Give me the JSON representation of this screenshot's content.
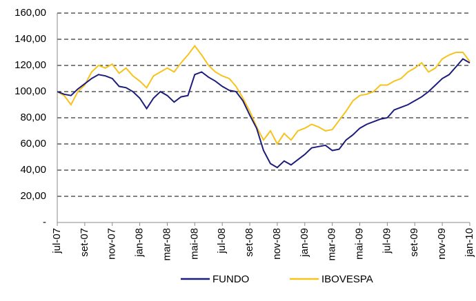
{
  "chart_data": {
    "type": "line",
    "categories": [
      "jul-07",
      null,
      null,
      null,
      "set-07",
      null,
      null,
      null,
      "nov-07",
      null,
      null,
      null,
      "jan-08",
      null,
      null,
      null,
      "mar-08",
      null,
      null,
      null,
      "mai-08",
      null,
      null,
      null,
      "jul-08",
      null,
      null,
      null,
      "set-08",
      null,
      null,
      null,
      "nov-08",
      null,
      null,
      null,
      "jan-09",
      null,
      null,
      null,
      "mar-09",
      null,
      null,
      null,
      "mai-09",
      null,
      null,
      null,
      "jul-09",
      null,
      null,
      null,
      "set-09",
      null,
      null,
      null,
      "nov-09",
      null,
      null,
      null,
      "jan-10"
    ],
    "series": [
      {
        "name": "FUNDO",
        "color": "#1c1c7c",
        "values": [
          100,
          98,
          97,
          102,
          106,
          110,
          113,
          112,
          110,
          104,
          103,
          100,
          95,
          87,
          95,
          100,
          97,
          92,
          96,
          97,
          113,
          115,
          111,
          108,
          104,
          101,
          100,
          93,
          82,
          72,
          55,
          45,
          42,
          47,
          44,
          48,
          52,
          57,
          58,
          59,
          55,
          56,
          63,
          67,
          72,
          75,
          77,
          79,
          80,
          86,
          88,
          90,
          93,
          96,
          100,
          105,
          110,
          113,
          119,
          125,
          122
        ]
      },
      {
        "name": "IBOVESPA",
        "color": "#f7c21b",
        "values": [
          100,
          97,
          90,
          100,
          105,
          115,
          120,
          118,
          121,
          114,
          118,
          112,
          108,
          103,
          112,
          115,
          118,
          115,
          122,
          128,
          135,
          128,
          120,
          115,
          112,
          110,
          104,
          95,
          85,
          73,
          63,
          70,
          60,
          68,
          63,
          70,
          72,
          75,
          73,
          70,
          71,
          78,
          85,
          93,
          97,
          98,
          100,
          105,
          105,
          108,
          110,
          115,
          118,
          122,
          115,
          118,
          125,
          128,
          130,
          130,
          123
        ]
      }
    ],
    "ylim": [
      0,
      160
    ],
    "yticks": [
      {
        "value": 0,
        "label": "-"
      },
      {
        "value": 20,
        "label": "20,00"
      },
      {
        "value": 40,
        "label": "40,00"
      },
      {
        "value": 60,
        "label": "60,00"
      },
      {
        "value": 80,
        "label": "80,00"
      },
      {
        "value": 100,
        "label": "100,00"
      },
      {
        "value": 120,
        "label": "120,00"
      },
      {
        "value": 140,
        "label": "140,00"
      },
      {
        "value": 160,
        "label": "160,00"
      }
    ],
    "grid": true
  }
}
